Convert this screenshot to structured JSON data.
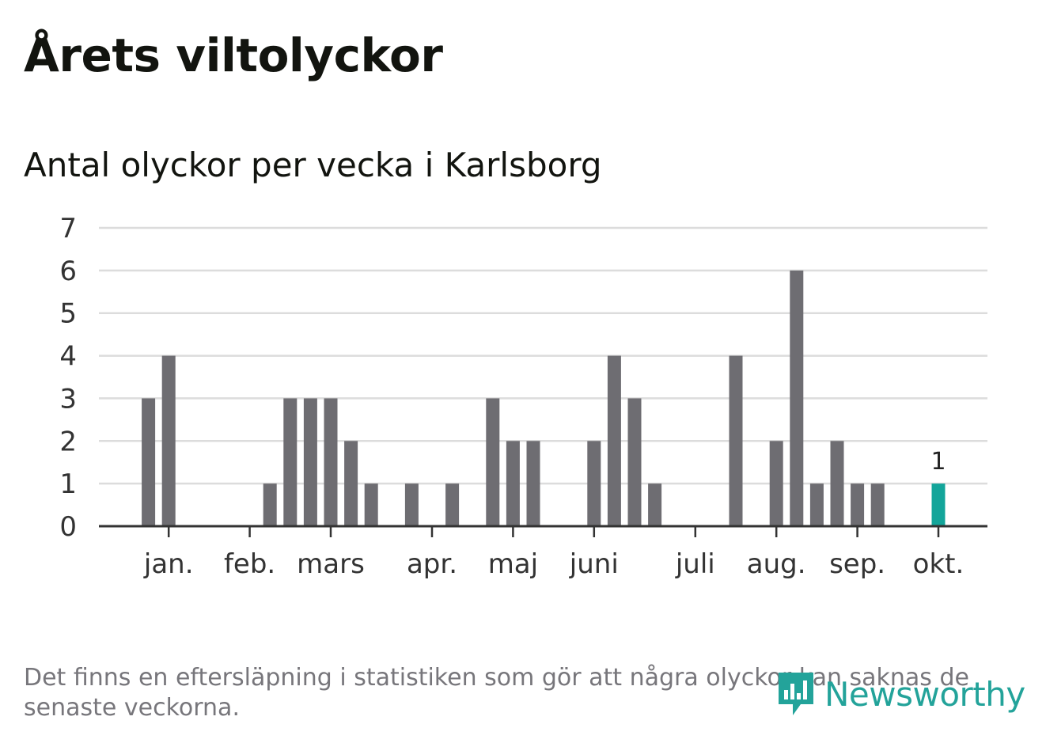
{
  "header": {
    "title": "Årets viltolyckor",
    "subtitle": "Antal olyckor per vecka i Karlsborg"
  },
  "footer": {
    "note": "Det finns en eftersläpning i statistiken som gör att några olyckor kan saknas de senaste veckorna.",
    "brand": "Newsworthy"
  },
  "colors": {
    "bar": "#6e6d72",
    "highlight": "#13a59a",
    "grid": "#dcdcdc",
    "axis": "#333333",
    "text": "#333333"
  },
  "chart_data": {
    "type": "bar",
    "title": "Antal olyckor per vecka i Karlsborg",
    "xlabel": "",
    "ylabel": "",
    "ylim": [
      0,
      7
    ],
    "yticks": [
      0,
      1,
      2,
      3,
      4,
      5,
      6,
      7
    ],
    "grid": true,
    "weeks": [
      1,
      2,
      3,
      4,
      5,
      6,
      7,
      8,
      9,
      10,
      11,
      12,
      13,
      14,
      15,
      16,
      17,
      18,
      19,
      20,
      21,
      22,
      23,
      24,
      25,
      26,
      27,
      28,
      29,
      30,
      31,
      32,
      33,
      34,
      35,
      36,
      37,
      38,
      39,
      40,
      41,
      42
    ],
    "values": [
      0,
      3,
      4,
      0,
      0,
      0,
      0,
      1,
      3,
      3,
      3,
      2,
      1,
      0,
      1,
      0,
      1,
      0,
      3,
      2,
      2,
      0,
      0,
      2,
      4,
      3,
      1,
      0,
      0,
      0,
      4,
      0,
      2,
      6,
      1,
      2,
      1,
      1,
      0,
      0,
      1,
      0
    ],
    "highlight_week": 41,
    "highlight_label": "1",
    "month_ticks": [
      {
        "label": "jan.",
        "week": 3
      },
      {
        "label": "feb.",
        "week": 7
      },
      {
        "label": "mars",
        "week": 11
      },
      {
        "label": "apr.",
        "week": 16
      },
      {
        "label": "maj",
        "week": 20
      },
      {
        "label": "juni",
        "week": 24
      },
      {
        "label": "juli",
        "week": 29
      },
      {
        "label": "aug.",
        "week": 33
      },
      {
        "label": "sep.",
        "week": 37
      },
      {
        "label": "okt.",
        "week": 41
      }
    ]
  }
}
